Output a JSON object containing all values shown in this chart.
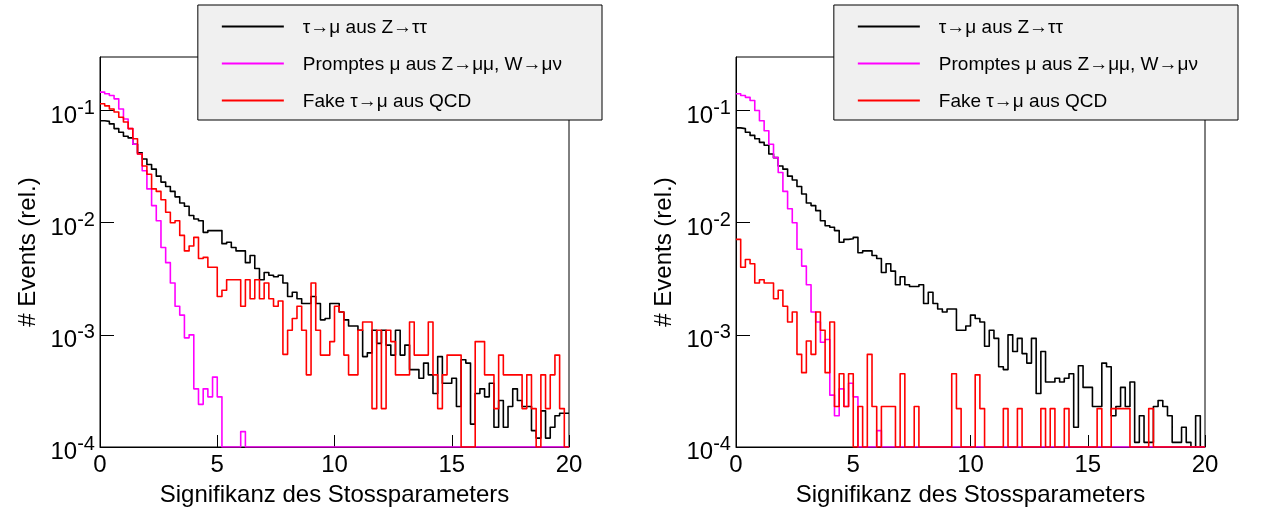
{
  "chart_data": [
    {
      "type": "histogram",
      "xlabel": "Signifikanz des Stossparameters",
      "ylabel": "# Events (rel.)",
      "log": "y",
      "grid": false,
      "legend": "top right",
      "xlim": [
        0,
        20
      ],
      "xticks": [
        0,
        5,
        10,
        15,
        20
      ],
      "ylim": [
        0.0001,
        0.3
      ],
      "yticks": [
        {
          "value": 0.0001,
          "label": "10$^{-4}$"
        },
        {
          "value": 0.001,
          "label": "10$^{-3}$"
        },
        {
          "value": 0.01,
          "label": "10$^{-2}$"
        },
        {
          "value": 0.1,
          "label": "10$^{-1}$"
        }
      ],
      "bins": [
        0,
        0.2,
        0.4,
        0.6,
        0.8,
        1,
        1.2,
        1.4,
        1.6,
        1.8,
        2,
        2.2,
        2.4,
        2.6,
        2.8,
        3,
        3.2,
        3.4,
        3.6,
        3.8,
        4,
        4.2,
        4.4,
        4.6,
        4.8,
        5,
        5.2,
        5.4,
        5.6,
        5.8,
        6,
        6.2,
        6.4,
        6.6,
        6.8,
        7,
        7.2,
        7.4,
        7.6,
        7.8,
        8,
        8.2,
        8.4,
        8.6,
        8.8,
        9,
        9.2,
        9.4,
        9.6,
        9.8,
        10,
        10.2,
        10.4,
        10.6,
        10.8,
        11,
        11.2,
        11.4,
        11.6,
        11.8,
        12,
        12.2,
        12.4,
        12.6,
        12.8,
        13,
        13.2,
        13.4,
        13.6,
        13.8,
        14,
        14.2,
        14.4,
        14.6,
        14.8,
        15,
        15.2,
        15.4,
        15.6,
        15.8,
        16,
        16.2,
        16.4,
        16.6,
        16.8,
        17,
        17.2,
        17.4,
        17.6,
        17.8,
        18,
        18.2,
        18.4,
        18.6,
        18.8,
        19,
        19.2,
        19.4,
        19.6,
        19.8,
        20
      ],
      "series": [
        {
          "name": "τ→μ aus Z→ττ",
          "color": "#000000",
          "values": [
            0.081,
            0.08,
            0.076,
            0.069,
            0.064,
            0.059,
            0.057,
            0.05,
            0.042,
            0.037,
            0.033,
            0.03,
            0.026,
            0.023,
            0.021,
            0.019,
            0.017,
            0.015,
            0.014,
            0.0116,
            0.0108,
            0.0104,
            0.0082,
            0.0085,
            0.0085,
            0.0085,
            0.0065,
            0.0067,
            0.006,
            0.0056,
            0.0056,
            0.0044,
            0.0051,
            0.0039,
            0.0031,
            0.0036,
            0.0034,
            0.0033,
            0.0034,
            0.0029,
            0.0022,
            0.0024,
            0.0021,
            0.0019,
            0.0019,
            0.0022,
            0.0019,
            0.00136,
            0.0014,
            0.0019,
            0.0019,
            0.0016,
            0.00136,
            0.0012,
            0.0012,
            0.0011,
            0.00064,
            0.00069,
            0.0011,
            0.00084,
            0.0011,
            0.00081,
            0.00066,
            0.0011,
            0.00066,
            0.00081,
            0.00049,
            0.00049,
            0.00041,
            0.00056,
            0.00044,
            0.0003,
            0.00064,
            0.00037,
            0.00037,
            0.00041,
            0.00023,
            0.0006,
            0.00056,
            0.00016,
            0.0003,
            0.00033,
            0.00028,
            0.00037,
            0.00015,
            0.00026,
            0.00015,
            0.00023,
            0.00033,
            0.00026,
            0.00023,
            0.00023,
            0.00014,
            0.00012,
            0.00021,
            0.00012,
            0.00015,
            0.00019,
            0.0002,
            0.0002
          ]
        },
        {
          "name": "Promptes μ aus Z→μμ, W→μν",
          "color": "#ff00ff",
          "values": [
            0.146,
            0.141,
            0.136,
            0.127,
            0.103,
            0.084,
            0.069,
            0.05,
            0.041,
            0.029,
            0.02,
            0.0142,
            0.0104,
            0.006,
            0.0044,
            0.0029,
            0.0018,
            0.0015,
            0.00094,
            0.001,
            0.00033,
            0.00024,
            0.00033,
            0.00028,
            0.00042,
            0.00028,
            null,
            null,
            null,
            null,
            0.000137,
            null,
            null,
            null,
            null,
            null,
            null,
            null,
            null,
            null,
            null,
            null,
            null,
            null,
            null,
            null,
            null,
            null,
            null,
            null,
            null,
            null,
            null,
            null,
            null,
            null,
            null,
            null,
            null,
            null,
            null,
            null,
            null,
            null,
            null,
            null,
            null,
            null,
            null,
            null,
            null,
            null,
            null,
            null,
            null,
            null,
            null,
            null,
            null,
            null,
            null,
            null,
            null,
            null,
            null,
            null,
            null,
            null,
            null,
            null,
            null,
            null,
            null,
            null,
            null,
            null,
            null,
            null,
            null,
            null
          ]
        },
        {
          "name": "Fake τ→μ aus QCD",
          "color": "#ff0000",
          "values": [
            0.115,
            0.11,
            0.103,
            0.097,
            0.087,
            0.079,
            0.069,
            0.056,
            0.041,
            0.032,
            0.027,
            0.02,
            0.019,
            0.016,
            0.0124,
            0.01,
            0.0104,
            0.0077,
            0.0056,
            0.0062,
            0.0074,
            0.0048,
            0.0049,
            0.004,
            0.004,
            0.0022,
            0.0025,
            0.0031,
            0.0031,
            0.0031,
            0.0018,
            0.0031,
            0.0021,
            0.0031,
            0.0021,
            0.0029,
            0.0021,
            0.0018,
            0.002,
            0.00067,
            0.0011,
            0.0014,
            0.0018,
            0.0011,
            0.00044,
            0.0029,
            0.0011,
            0.00066,
            0.00066,
            0.00087,
            0.0018,
            0.0016,
            0.00066,
            0.00044,
            0.00044,
            0.0011,
            0.0013,
            0.0013,
            0.00022,
            0.0011,
            0.00022,
            0.0011,
            0.00087,
            0.00044,
            0.00044,
            0.00044,
            0.0013,
            0.00066,
            0.00066,
            0.00066,
            0.0013,
            0.00044,
            0.00022,
            0.00044,
            0.00066,
            0.00066,
            0.00066,
            null,
            null,
            null,
            0.00087,
            0.00087,
            0.00044,
            0.00044,
            0.00022,
            0.00066,
            0.00044,
            0.00044,
            0.00044,
            0.00044,
            0.00022,
            0.00044,
            0.00022,
            null,
            0.00044,
            0.00022,
            0.00044,
            0.00066,
            0.00022,
            null
          ]
        }
      ]
    },
    {
      "type": "histogram",
      "xlabel": "Signifikanz des Stossparameters",
      "ylabel": "# Events (rel.)",
      "log": "y",
      "grid": false,
      "legend": "top right",
      "xlim": [
        0,
        20
      ],
      "xticks": [
        0,
        5,
        10,
        15,
        20
      ],
      "ylim": [
        0.0001,
        0.3
      ],
      "yticks": [
        {
          "value": 0.0001,
          "label": "10$^{-4}$"
        },
        {
          "value": 0.001,
          "label": "10$^{-3}$"
        },
        {
          "value": 0.01,
          "label": "10$^{-2}$"
        },
        {
          "value": 0.1,
          "label": "10$^{-1}$"
        }
      ],
      "bins": [
        0,
        0.2,
        0.4,
        0.6,
        0.8,
        1,
        1.2,
        1.4,
        1.6,
        1.8,
        2,
        2.2,
        2.4,
        2.6,
        2.8,
        3,
        3.2,
        3.4,
        3.6,
        3.8,
        4,
        4.2,
        4.4,
        4.6,
        4.8,
        5,
        5.2,
        5.4,
        5.6,
        5.8,
        6,
        6.2,
        6.4,
        6.6,
        6.8,
        7,
        7.2,
        7.4,
        7.6,
        7.8,
        8,
        8.2,
        8.4,
        8.6,
        8.8,
        9,
        9.2,
        9.4,
        9.6,
        9.8,
        10,
        10.2,
        10.4,
        10.6,
        10.8,
        11,
        11.2,
        11.4,
        11.6,
        11.8,
        12,
        12.2,
        12.4,
        12.6,
        12.8,
        13,
        13.2,
        13.4,
        13.6,
        13.8,
        14,
        14.2,
        14.4,
        14.6,
        14.8,
        15,
        15.2,
        15.4,
        15.6,
        15.8,
        16,
        16.2,
        16.4,
        16.6,
        16.8,
        17,
        17.2,
        17.4,
        17.6,
        17.8,
        18,
        18.2,
        18.4,
        18.6,
        18.8,
        19,
        19.2,
        19.4,
        19.6,
        19.8,
        20
      ],
      "series": [
        {
          "name": "τ→μ aus Z→ττ",
          "color": "#000000",
          "values": [
            0.07,
            0.069,
            0.064,
            0.06,
            0.056,
            0.052,
            0.049,
            0.041,
            0.038,
            0.032,
            0.03,
            0.026,
            0.024,
            0.021,
            0.018,
            0.015,
            0.0142,
            0.0128,
            0.0104,
            0.0094,
            0.0091,
            0.0085,
            0.0067,
            0.0071,
            0.0072,
            0.0074,
            0.0054,
            0.0056,
            0.0056,
            0.0051,
            0.0048,
            0.0036,
            0.0043,
            0.0037,
            0.0028,
            0.0033,
            0.0028,
            0.0027,
            0.0027,
            0.0028,
            0.0019,
            0.0024,
            0.0019,
            0.0017,
            0.0016,
            0.0017,
            0.0017,
            0.0011,
            0.0011,
            0.0012,
            0.0015,
            0.0014,
            0.0013,
            0.00079,
            0.0011,
            0.00093,
            0.00052,
            0.00049,
            0.001,
            0.00071,
            0.00093,
            0.00068,
            0.00056,
            0.00093,
            0.0003,
            0.00071,
            0.00038,
            0.00038,
            0.00041,
            0.00038,
            0.00041,
            0.00045,
            0.00015,
            0.00053,
            0.00034,
            0.00034,
            0.00023,
            0.00023,
            0.00056,
            0.00052,
            0.00019,
            0.00023,
            0.00034,
            0.00023,
            0.00038,
            0.00011,
            0.00019,
            0.00011,
            0.00011,
            0.00023,
            0.00026,
            0.00023,
            0.00019,
            0.00011,
            0.00011,
            0.00015,
            0.00011,
            null,
            0.00019,
            null
          ]
        },
        {
          "name": "Promptes μ aus Z→μμ, W→μν",
          "color": "#ff00ff",
          "values": [
            0.141,
            0.136,
            0.131,
            0.123,
            0.1,
            0.081,
            0.066,
            0.05,
            0.038,
            0.028,
            0.019,
            0.0133,
            0.01,
            0.0058,
            0.0041,
            0.0028,
            0.0016,
            0.0013,
            0.00086,
            0.00091,
            0.00029,
            0.00019,
            0.00033,
            0.00023,
            0.00037,
            0.00028,
            null,
            null,
            null,
            null,
            0.00014,
            null,
            null,
            null,
            null,
            null,
            null,
            null,
            null,
            null,
            null,
            null,
            null,
            null,
            null,
            null,
            null,
            null,
            null,
            null,
            null,
            null,
            null,
            null,
            null,
            null,
            null,
            null,
            null,
            null,
            null,
            null,
            null,
            null,
            null,
            null,
            null,
            null,
            null,
            null,
            null,
            null,
            null,
            null,
            null,
            null,
            null,
            null,
            null,
            null,
            null,
            null,
            null,
            null,
            null,
            null,
            null,
            null,
            null,
            null,
            null,
            null,
            null,
            null,
            null,
            null,
            null,
            null,
            null,
            null
          ]
        },
        {
          "name": "Fake τ→μ aus QCD",
          "color": "#ff0000",
          "values": [
            0.0071,
            0.004,
            0.0047,
            0.0043,
            0.0029,
            0.0031,
            0.0029,
            0.0029,
            0.0021,
            0.0025,
            0.0018,
            0.0013,
            0.0016,
            0.00067,
            0.00046,
            0.00088,
            0.00067,
            0.0016,
            0.0011,
            0.00046,
            0.0013,
            0.00023,
            0.00045,
            0.00023,
            0.00045,
            null,
            0.00023,
            null,
            0.00067,
            0.00023,
            null,
            0.00023,
            0.00023,
            0.00023,
            null,
            0.00045,
            null,
            null,
            0.00023,
            null,
            null,
            null,
            null,
            null,
            null,
            null,
            0.00045,
            0.00022,
            null,
            null,
            null,
            0.00044,
            0.00022,
            null,
            null,
            null,
            null,
            0.00022,
            null,
            null,
            0.00022,
            null,
            null,
            null,
            null,
            0.00022,
            null,
            0.00022,
            null,
            null,
            0.00022,
            null,
            null,
            null,
            null,
            null,
            null,
            0.00022,
            null,
            null,
            0.00022,
            0.00022,
            0.00022,
            0.00022,
            null,
            null,
            null,
            null,
            0.00022,
            null,
            null,
            null,
            null,
            null,
            null,
            null,
            null,
            null,
            null,
            null
          ]
        }
      ]
    }
  ]
}
